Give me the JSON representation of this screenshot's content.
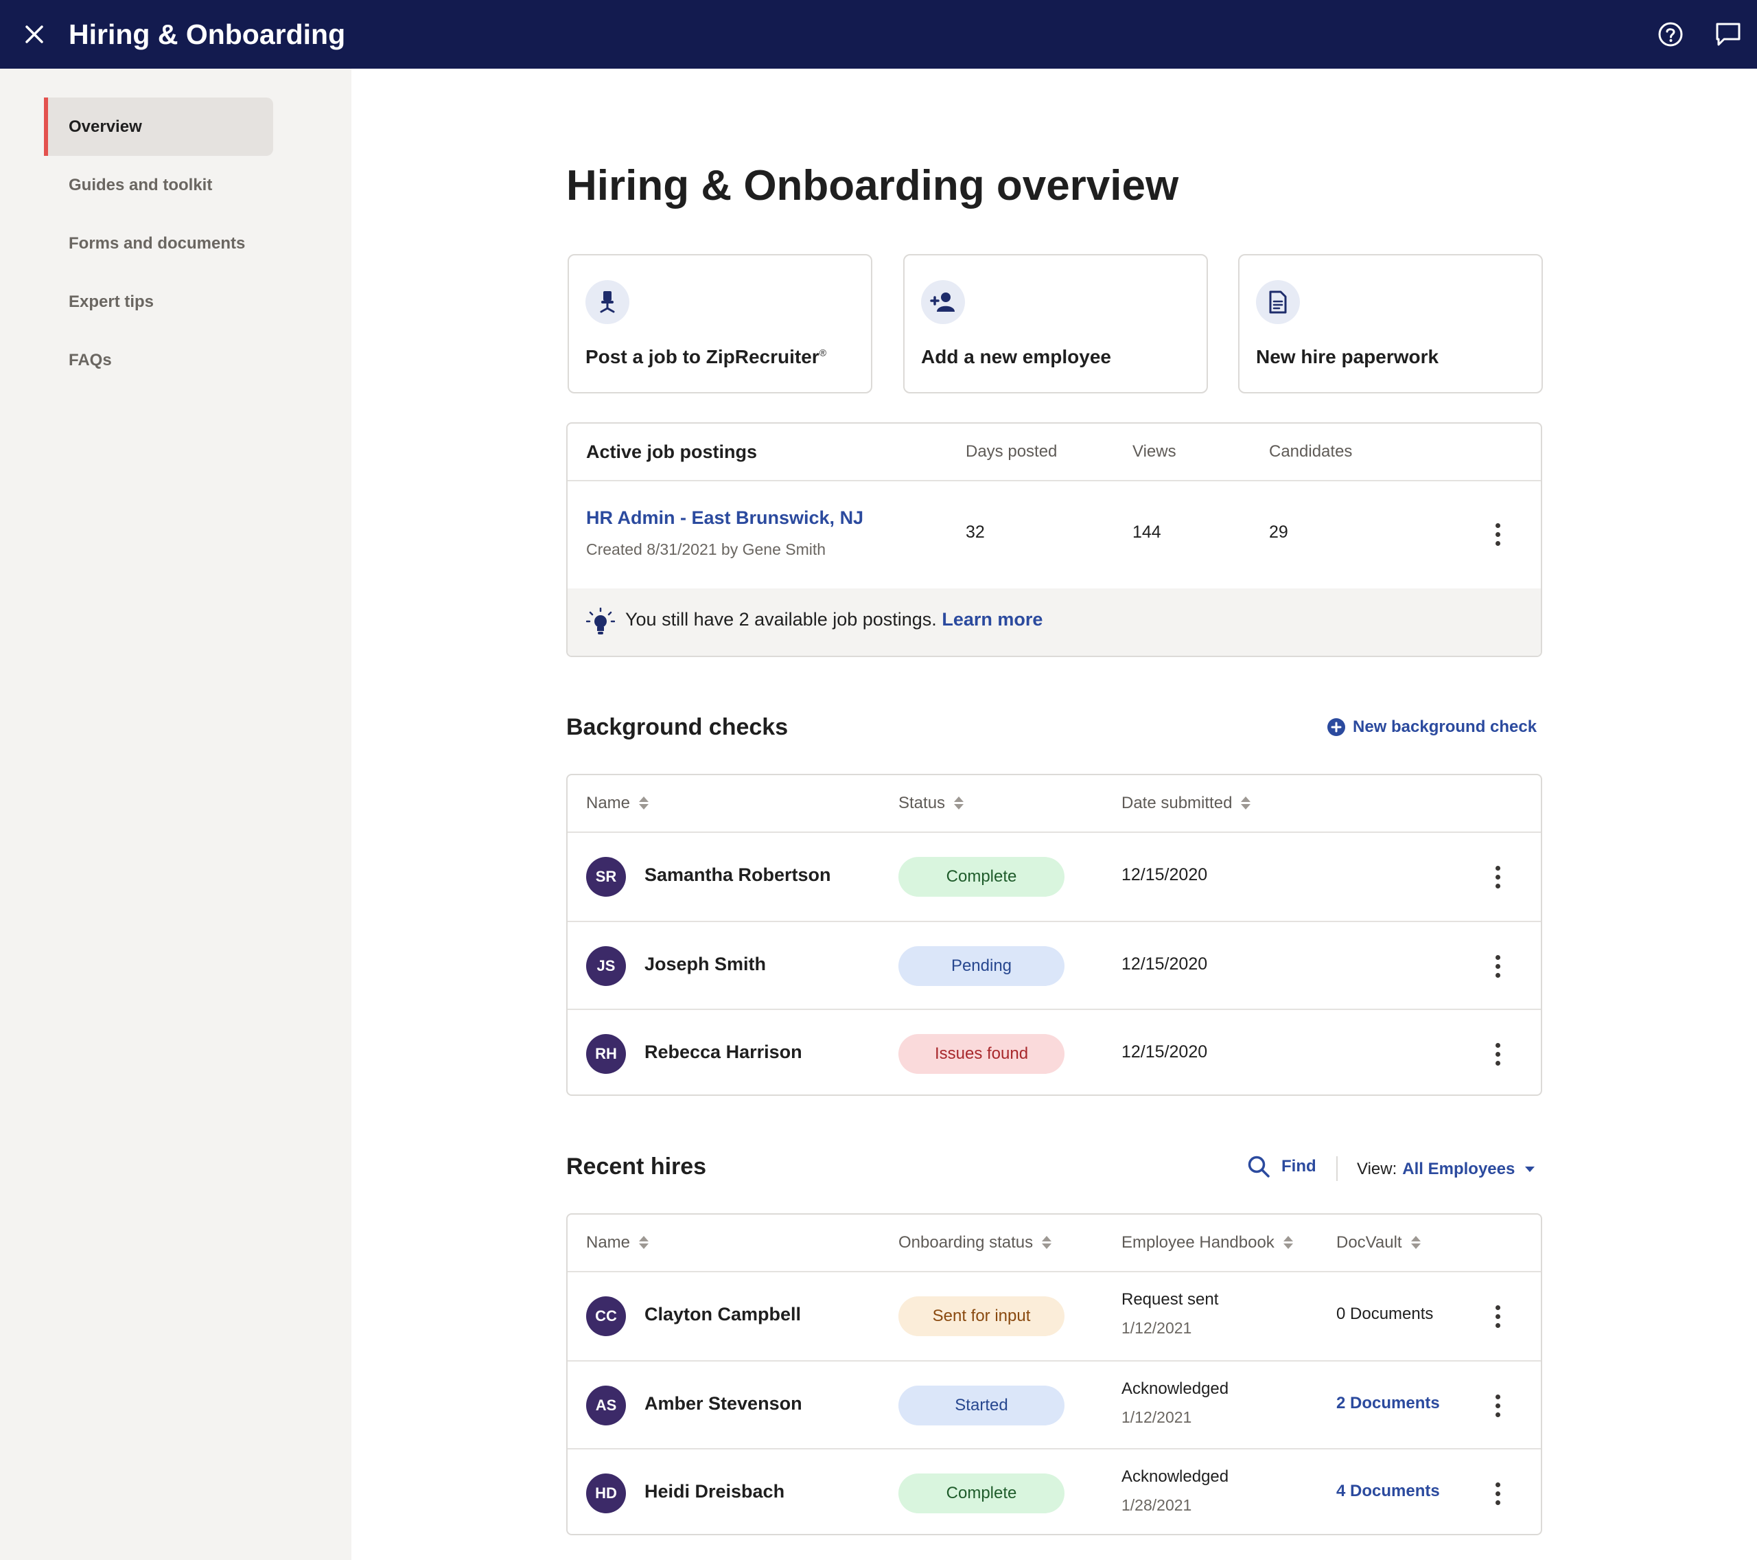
{
  "topbar": {
    "title": "Hiring & Onboarding",
    "icons": [
      "close-icon",
      "help-icon",
      "chat-icon"
    ]
  },
  "sidebar": {
    "items": [
      {
        "label": "Overview",
        "active": true
      },
      {
        "label": "Guides and toolkit"
      },
      {
        "label": "Forms and documents"
      },
      {
        "label": "Expert tips"
      },
      {
        "label": "FAQs"
      }
    ]
  },
  "main": {
    "title": "Hiring & Onboarding overview",
    "tiles": [
      {
        "label": "Post a job to ZipRecruiter",
        "mark": "®",
        "icon": "office-chair-icon"
      },
      {
        "label": "Add a new employee",
        "icon": "add-person-icon"
      },
      {
        "label": "New hire paperwork",
        "icon": "document-icon"
      }
    ]
  },
  "job_postings": {
    "headers": [
      "Active job postings",
      "Days posted",
      "Views",
      "Candidates"
    ],
    "rows": [
      {
        "title": "HR Admin - East Brunswick, NJ",
        "created": "Created 8/31/2021 by Gene Smith",
        "days": "32",
        "views": "144",
        "candidates": "29"
      }
    ],
    "tip": "You still have 2 available job postings.",
    "tip_link": "Learn more"
  },
  "background_checks": {
    "title": "Background checks",
    "new_label": "New background check",
    "headers": [
      "Name",
      "Status",
      "Date submitted"
    ],
    "rows": [
      {
        "initials": "SR",
        "name": "Samantha Robertson",
        "status": "Complete",
        "date": "12/15/2020"
      },
      {
        "initials": "JS",
        "name": "Joseph Smith",
        "status": "Pending",
        "date": "12/15/2020"
      },
      {
        "initials": "RH",
        "name": "Rebecca Harrison",
        "status": "Issues found",
        "date": "12/15/2020"
      }
    ]
  },
  "recent_hires": {
    "title": "Recent hires",
    "find_label": "Find",
    "view_label": "View:",
    "view_value": "All Employees",
    "headers": [
      "Name",
      "Onboarding status",
      "Employee Handbook",
      "DocVault"
    ],
    "rows": [
      {
        "initials": "CC",
        "name": "Clayton Campbell",
        "status": "Sent for input",
        "handbook": "Request sent",
        "handbook_date": "1/12/2021",
        "docvault": "0 Documents"
      },
      {
        "initials": "AS",
        "name": "Amber Stevenson",
        "status": "Started",
        "handbook": "Acknowledged",
        "handbook_date": "1/12/2021",
        "docvault": "2 Documents"
      },
      {
        "initials": "HD",
        "name": "Heidi Dreisbach",
        "status": "Complete",
        "handbook": "Acknowledged",
        "handbook_date": "1/28/2021",
        "docvault": "4 Documents"
      }
    ]
  },
  "colors": {
    "navy": "#131b4f",
    "accent_red": "#e3514e",
    "link_blue": "#2b4a9e",
    "complete_bg": "#d9f5de",
    "pending_bg": "#dbe6f9",
    "issues_bg": "#fadadb",
    "sent_bg": "#fbedd9",
    "avatar": "#3c2a68"
  }
}
